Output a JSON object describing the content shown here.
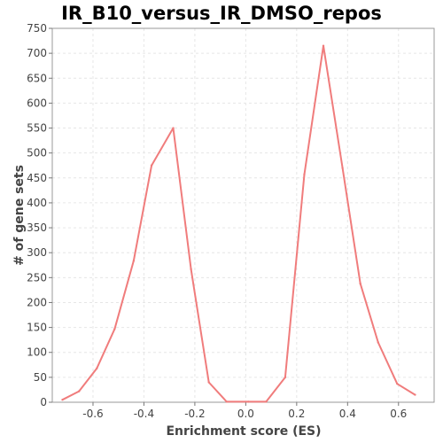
{
  "chart_data": {
    "type": "line",
    "title": "IR_B10_versus_IR_DMSO_repos",
    "xlabel": "Enrichment score (ES)",
    "ylabel": "# of gene sets",
    "xlim": [
      -0.76,
      0.74
    ],
    "ylim": [
      0,
      750
    ],
    "xticks": [
      -0.6,
      -0.4,
      -0.2,
      0.0,
      0.2,
      0.4,
      0.6
    ],
    "xtick_labels": [
      "-0.6",
      "-0.4",
      "-0.2",
      "0.0",
      "0.2",
      "0.4",
      "0.6"
    ],
    "yticks": [
      0,
      50,
      100,
      150,
      200,
      250,
      300,
      350,
      400,
      450,
      500,
      550,
      600,
      650,
      700,
      750
    ],
    "ytick_labels": [
      "0",
      "50",
      "100",
      "150",
      "200",
      "250",
      "300",
      "350",
      "400",
      "450",
      "500",
      "550",
      "600",
      "650",
      "700",
      "750"
    ],
    "grid": true,
    "series": [
      {
        "color": "#f07c7c",
        "x": [
          -0.72,
          -0.655,
          -0.585,
          -0.515,
          -0.44,
          -0.37,
          -0.285,
          -0.215,
          -0.145,
          -0.075,
          0.01,
          0.08,
          0.155,
          0.23,
          0.305,
          0.38,
          0.45,
          0.52,
          0.595,
          0.665
        ],
        "y": [
          5,
          22,
          68,
          147,
          284,
          475,
          550,
          267,
          40,
          1,
          1,
          1,
          50,
          457,
          715,
          470,
          238,
          120,
          37,
          15
        ]
      }
    ]
  }
}
